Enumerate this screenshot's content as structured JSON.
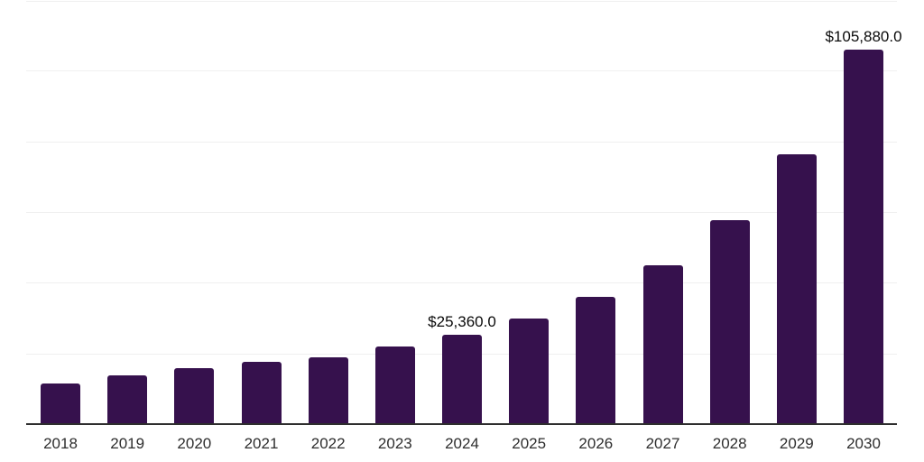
{
  "chart_data": {
    "type": "bar",
    "title": "",
    "xlabel": "",
    "ylabel": "",
    "categories": [
      "2018",
      "2019",
      "2020",
      "2021",
      "2022",
      "2023",
      "2024",
      "2025",
      "2026",
      "2027",
      "2028",
      "2029",
      "2030"
    ],
    "values": [
      11490,
      13860,
      15750,
      17490,
      18900,
      21880,
      25360,
      29950,
      35920,
      44860,
      57620,
      76410,
      105880
    ],
    "value_labels": {
      "2024": "$25,360.0",
      "2030": "$105,880.0"
    },
    "ylim": [
      0,
      120000
    ],
    "grid_step": 20000,
    "grid": "horizontal",
    "legend": "none",
    "colors": {
      "bar": "#36114D",
      "grid_line": "#F0F0F0",
      "axis_line": "#2E2E2E",
      "tick_label": "#2E2E2E",
      "value_label": "#0A0A0A",
      "background": "#FFFFFF"
    }
  }
}
